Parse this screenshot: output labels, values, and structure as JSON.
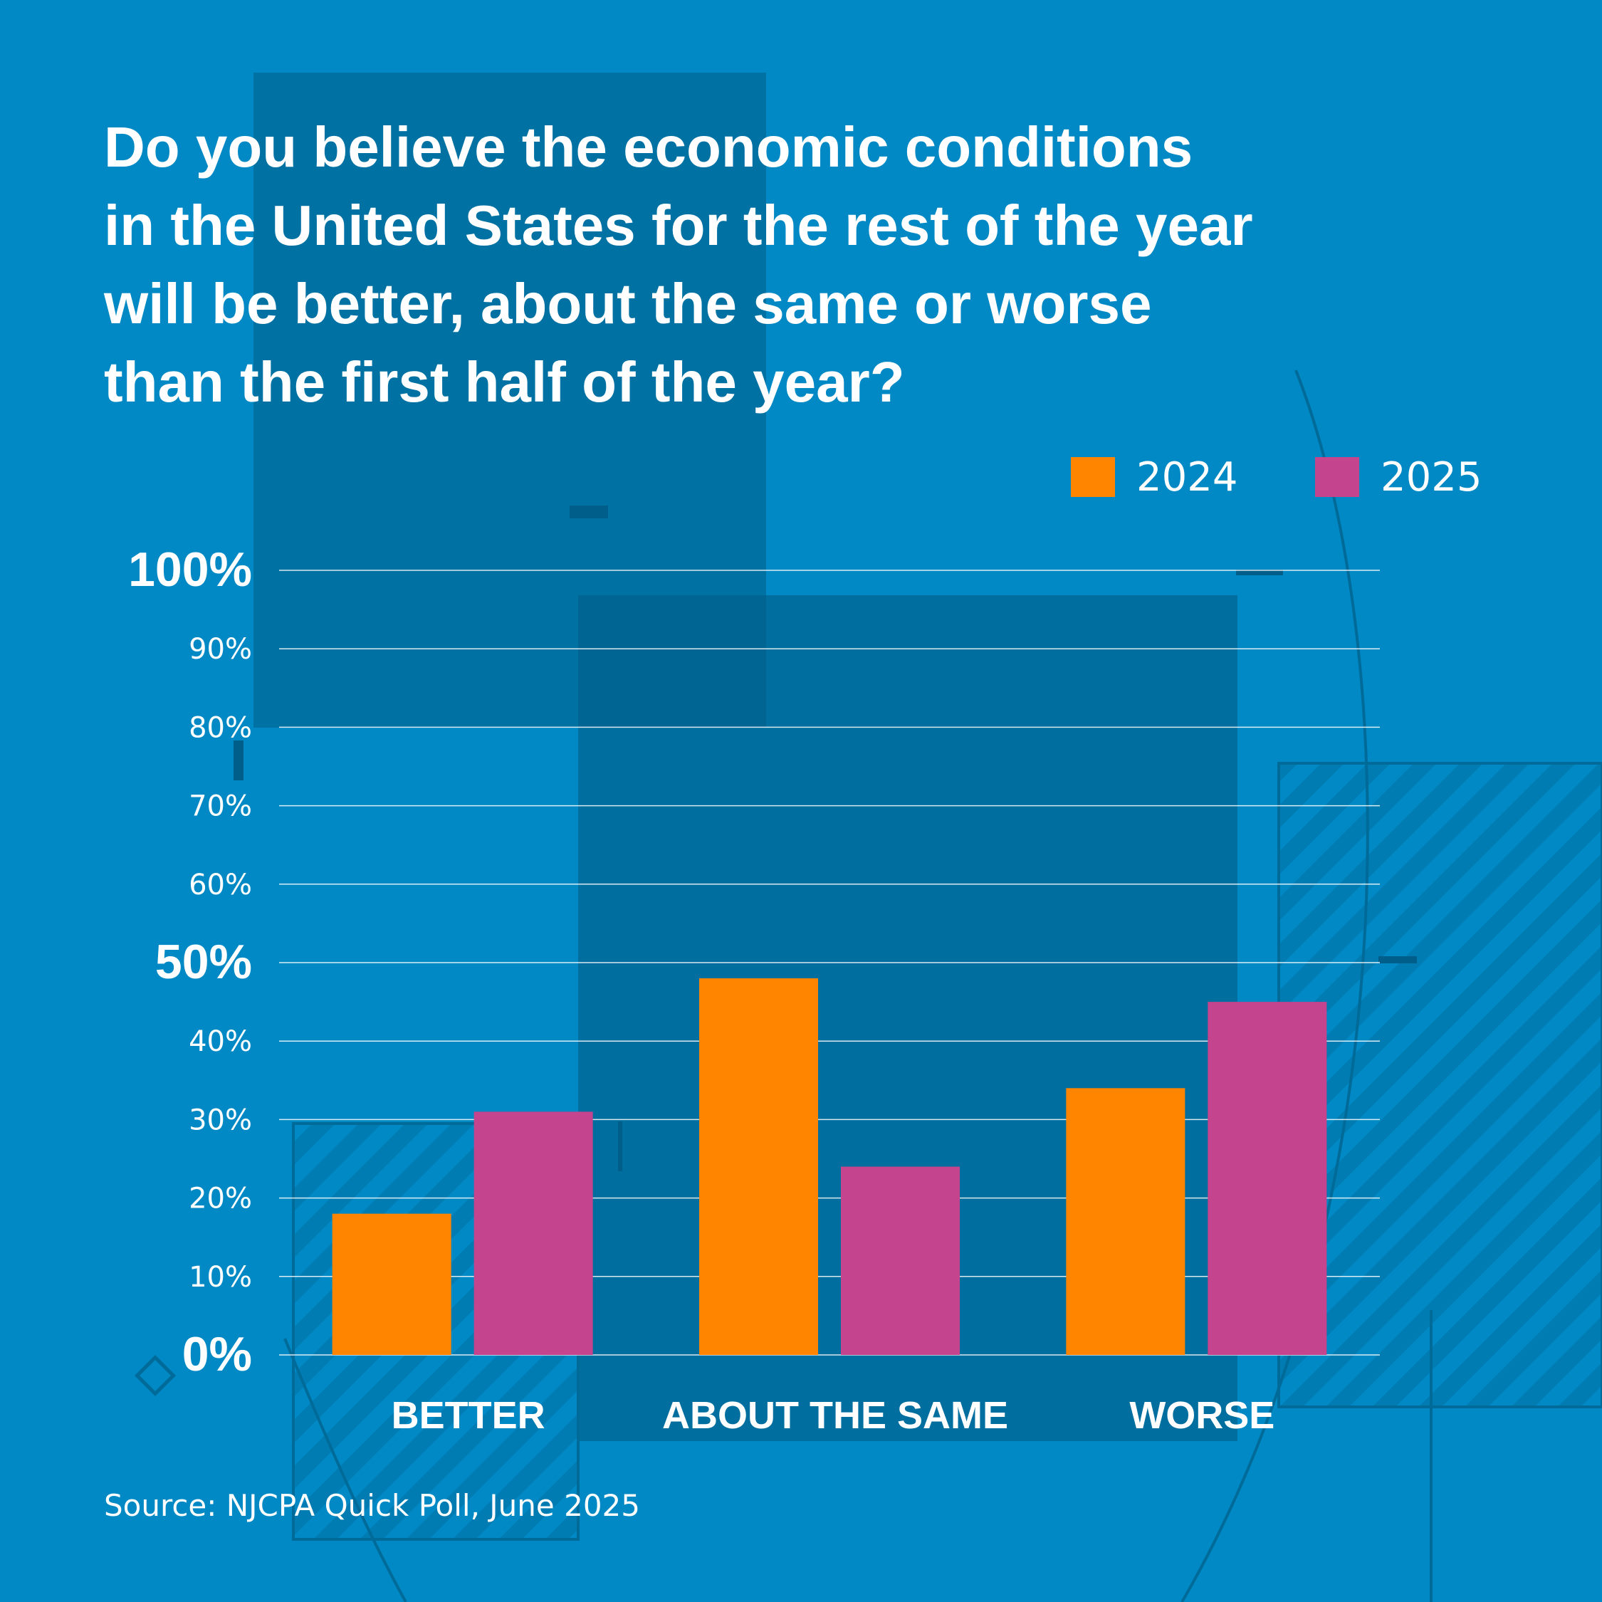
{
  "title_lines": [
    "Do you believe the economic conditions",
    "in the United States for the rest of the year",
    "will be better, about the same or worse",
    "than the first half of the year?"
  ],
  "source": "Source: NJCPA Quick Poll, June 2025",
  "colors": {
    "background": "#0089c4",
    "series_2024": "#ff8500",
    "series_2025": "#c4448e",
    "text": "#ffffff"
  },
  "chart_data": {
    "type": "bar",
    "title": "Do you believe the economic conditions in the United States for the rest of the year will be better, about the same or worse than the first half of the year?",
    "categories": [
      "BETTER",
      "ABOUT THE SAME",
      "WORSE"
    ],
    "series": [
      {
        "name": "2024",
        "color": "#ff8500",
        "values": [
          18,
          48,
          34
        ]
      },
      {
        "name": "2025",
        "color": "#c4448e",
        "values": [
          31,
          24,
          45
        ]
      }
    ],
    "ylim": [
      0,
      100
    ],
    "yticks": [
      {
        "value": 0,
        "label": "0%",
        "major": true
      },
      {
        "value": 10,
        "label": "10%",
        "major": false
      },
      {
        "value": 20,
        "label": "20%",
        "major": false
      },
      {
        "value": 30,
        "label": "30%",
        "major": false
      },
      {
        "value": 40,
        "label": "40%",
        "major": false
      },
      {
        "value": 50,
        "label": "50%",
        "major": true
      },
      {
        "value": 60,
        "label": "60%",
        "major": false
      },
      {
        "value": 70,
        "label": "70%",
        "major": false
      },
      {
        "value": 80,
        "label": "80%",
        "major": false
      },
      {
        "value": 90,
        "label": "90%",
        "major": false
      },
      {
        "value": 100,
        "label": "100%",
        "major": true
      }
    ],
    "xlabel": "",
    "ylabel": "",
    "grid": true,
    "legend_position": "top-right"
  }
}
